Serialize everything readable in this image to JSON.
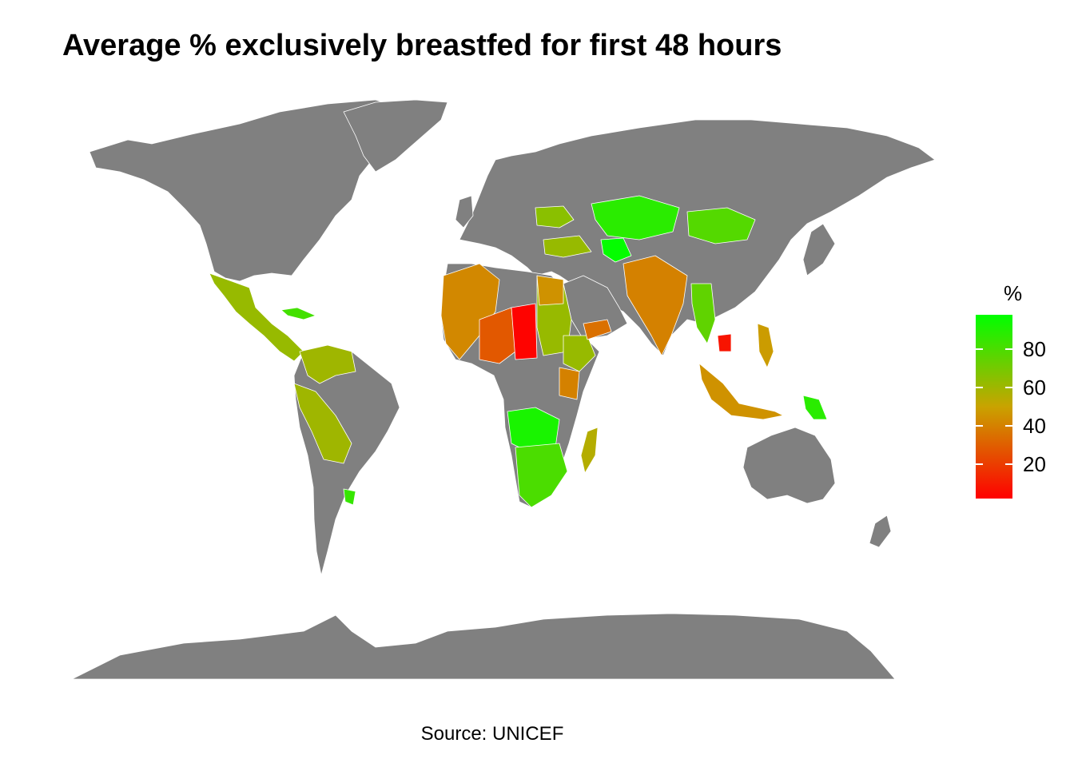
{
  "title": "Average % exclusively breastfed for first 48 hours",
  "caption": "Source: UNICEF",
  "colors": {
    "land_no_data": "#808080",
    "border": "#ffffff",
    "scale_low": "#ff0000",
    "scale_mid": "#c9a300",
    "scale_high": "#00ff00"
  },
  "legend": {
    "title": "%",
    "ticks": [
      "20",
      "40",
      "60",
      "80"
    ],
    "range": [
      2,
      98
    ]
  },
  "chart_data": {
    "type": "choropleth",
    "title": "Average % exclusively breastfed for first 48 hours",
    "legend_title": "%",
    "legend_ticks": [
      20,
      40,
      60,
      80
    ],
    "value_range": [
      2,
      98
    ],
    "regions": [
      {
        "region": "Mexico / Central America",
        "value": 62
      },
      {
        "region": "Cuba",
        "value": 82
      },
      {
        "region": "Colombia / Venezuela",
        "value": 60
      },
      {
        "region": "Peru / Bolivia",
        "value": 60
      },
      {
        "region": "Uruguay",
        "value": 85
      },
      {
        "region": "West Africa",
        "value": 42
      },
      {
        "region": "Nigeria / Niger",
        "value": 28
      },
      {
        "region": "Chad",
        "value": 3
      },
      {
        "region": "Sudan",
        "value": 62
      },
      {
        "region": "Egypt",
        "value": 45
      },
      {
        "region": "Ethiopia",
        "value": 62
      },
      {
        "region": "Kenya",
        "value": 40
      },
      {
        "region": "Yemen",
        "value": 35
      },
      {
        "region": "Angola / DR Congo",
        "value": 92
      },
      {
        "region": "Southern Africa",
        "value": 80
      },
      {
        "region": "Madagascar",
        "value": 55
      },
      {
        "region": "Turkey",
        "value": 62
      },
      {
        "region": "Ukraine",
        "value": 65
      },
      {
        "region": "Kazakhstan",
        "value": 88
      },
      {
        "region": "Mongolia",
        "value": 78
      },
      {
        "region": "Turkmenistan",
        "value": 97
      },
      {
        "region": "India",
        "value": 40
      },
      {
        "region": "Myanmar / Thailand",
        "value": 75
      },
      {
        "region": "Cambodia",
        "value": 8
      },
      {
        "region": "Indonesia",
        "value": 45
      },
      {
        "region": "Philippines",
        "value": 48
      },
      {
        "region": "Papua New Guinea",
        "value": 88
      }
    ]
  }
}
